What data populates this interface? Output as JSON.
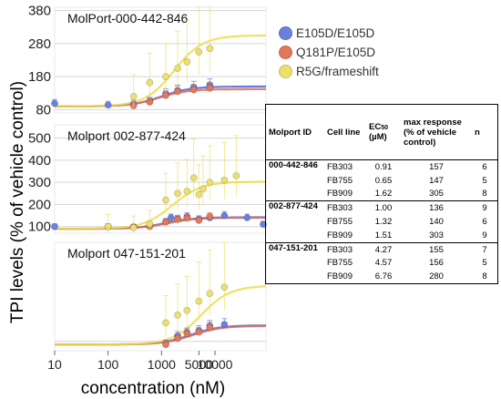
{
  "figure": {
    "y_axis_label": "TPI levels (% of vehicle control)",
    "x_axis_label": "concentration (nM)"
  },
  "legend": {
    "items": [
      {
        "label": "E105D/E105D",
        "color": "#6a7fe0"
      },
      {
        "label": "Q181P/E105D",
        "color": "#e0785a"
      },
      {
        "label": "R5G/frameshift",
        "color": "#ecdf6e"
      }
    ]
  },
  "colors": {
    "E105D": "#6a7fe0",
    "Q181P": "#e0785a",
    "R5G": "#ecdf6e",
    "R5G_curve": "#ecdc4a",
    "E105D_curve": "#4a63d8",
    "Q181P_curve": "#d9705a"
  },
  "chart_data": [
    {
      "type": "scatter",
      "title": "MolPort-000-442-846",
      "x_scale": "log",
      "xlim": [
        10,
        90000
      ],
      "ylim": [
        70,
        390
      ],
      "yticks": [
        80,
        180,
        280,
        380
      ],
      "series": [
        {
          "name": "E105D/E105D",
          "x": [
            10,
            100,
            300,
            600,
            1200,
            2000,
            4000,
            8000
          ],
          "y": [
            99,
            94,
            97,
            105,
            128,
            138,
            148,
            155
          ]
        },
        {
          "name": "Q181P/E105D",
          "x": [
            300,
            600,
            1200,
            2000,
            4000,
            8000
          ],
          "y": [
            92,
            103,
            123,
            135,
            140,
            145
          ]
        },
        {
          "name": "R5G/frameshift",
          "x": [
            300,
            600,
            1200,
            2000,
            3000,
            5000,
            8000
          ],
          "y": [
            120,
            162,
            180,
            205,
            225,
            255,
            265
          ]
        }
      ]
    },
    {
      "type": "scatter",
      "title": "Molport 002-877-424",
      "x_scale": "log",
      "xlim": [
        10,
        90000
      ],
      "ylim": [
        70,
        560
      ],
      "yticks": [
        100,
        200,
        300,
        400,
        500
      ],
      "series": [
        {
          "name": "E105D/E105D",
          "x": [
            10,
            100,
            300,
            600,
            1200,
            1500,
            2000,
            3000,
            5000,
            8000,
            15000,
            40000,
            80000
          ],
          "y": [
            100,
            100,
            98,
            103,
            122,
            140,
            135,
            145,
            133,
            140,
            150,
            140,
            110
          ]
        },
        {
          "name": "Q181P/E105D",
          "x": [
            300,
            600,
            1200,
            2000,
            3000,
            5000,
            8000
          ],
          "y": [
            98,
            100,
            120,
            132,
            138,
            128,
            145
          ]
        },
        {
          "name": "R5G/frameshift",
          "x": [
            100,
            300,
            600,
            1200,
            2000,
            3000,
            4000,
            5000,
            6000,
            8000,
            15000,
            25000
          ],
          "y": [
            100,
            95,
            112,
            220,
            250,
            260,
            320,
            245,
            270,
            300,
            310,
            330
          ]
        }
      ]
    },
    {
      "type": "scatter",
      "title": "Molport 047-151-201",
      "x_scale": "log",
      "xlim": [
        10,
        90000
      ],
      "ylim": [
        70,
        420
      ],
      "series": [
        {
          "name": "E105D/E105D",
          "x": [
            1200,
            2000,
            3000,
            5000,
            8000,
            15000
          ],
          "y": [
            93,
            118,
            128,
            135,
            150,
            155
          ]
        },
        {
          "name": "Q181P/E105D",
          "x": [
            1200,
            2000,
            3000,
            5000,
            8000
          ],
          "y": [
            90,
            110,
            125,
            130,
            145
          ]
        },
        {
          "name": "R5G/frameshift",
          "x": [
            1200,
            2000,
            3000,
            5000,
            8000,
            15000
          ],
          "y": [
            160,
            185,
            200,
            230,
            255,
            275
          ]
        }
      ]
    },
    {
      "type": "table",
      "columns": [
        "Molport ID",
        "Cell line",
        "EC",
        "50",
        "(µM)",
        "max response (% of vehicle control)",
        "n"
      ],
      "groups": [
        {
          "id": "000-442-846",
          "rows": [
            {
              "cell": "FB303",
              "ec50": "0.91",
              "max": "157",
              "n": "6"
            },
            {
              "cell": "FB755",
              "ec50": "0.65",
              "max": "147",
              "n": "5"
            },
            {
              "cell": "FB909",
              "ec50": "1.62",
              "max": "305",
              "n": "8"
            }
          ]
        },
        {
          "id": "002-877-424",
          "rows": [
            {
              "cell": "FB303",
              "ec50": "1.00",
              "max": "136",
              "n": "9"
            },
            {
              "cell": "FB755",
              "ec50": "1.32",
              "max": "140",
              "n": "6"
            },
            {
              "cell": "FB909",
              "ec50": "1.51",
              "max": "303",
              "n": "9"
            }
          ]
        },
        {
          "id": "047-151-201",
          "rows": [
            {
              "cell": "FB303",
              "ec50": "4.27",
              "max": "155",
              "n": "7"
            },
            {
              "cell": "FB755",
              "ec50": "4.57",
              "max": "156",
              "n": "5"
            },
            {
              "cell": "FB909",
              "ec50": "6.76",
              "max": "280",
              "n": "8"
            }
          ]
        }
      ]
    }
  ],
  "x_axis_ticks": [
    "10",
    "100",
    "1000",
    "10000"
  ],
  "x_axis_tick_value_5000": "5000"
}
